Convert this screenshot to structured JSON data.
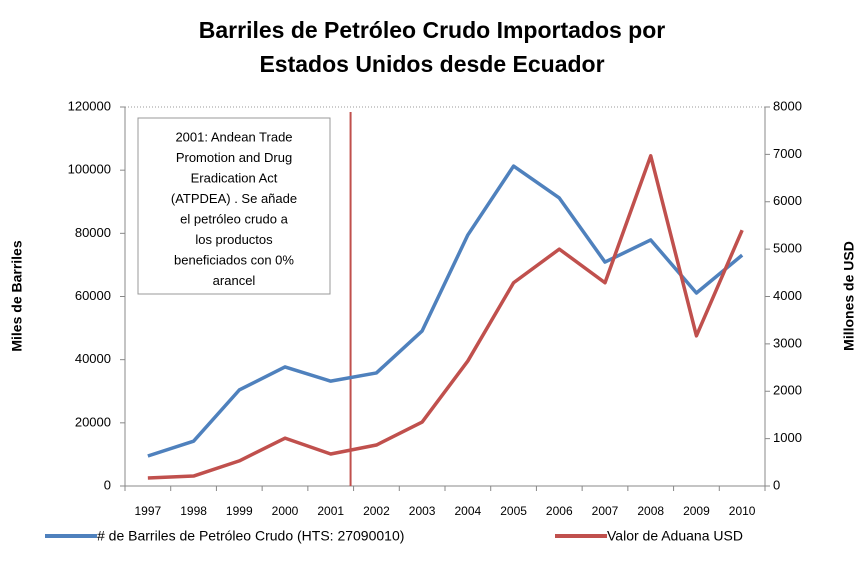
{
  "chart_data": {
    "type": "line",
    "title": [
      "Barriles de Petróleo Crudo Importados por",
      "Estados Unidos desde Ecuador"
    ],
    "ylabel": "Miles de Barriles",
    "y2label": "Millones de USD",
    "categories": [
      "1997",
      "1998",
      "1999",
      "2000",
      "2001",
      "2002",
      "2003",
      "2004",
      "2005",
      "2006",
      "2007",
      "2008",
      "2009",
      "2010"
    ],
    "series": [
      {
        "name": "# de Barriles de Petróleo Crudo (HTS: 27090010)",
        "color": "#4f81bd",
        "axis": "y",
        "values": [
          9500,
          14200,
          30400,
          37700,
          33200,
          35800,
          49100,
          79500,
          101300,
          91200,
          70900,
          77900,
          61100,
          73100
        ]
      },
      {
        "name": "Valor de Aduana USD",
        "color": "#c0504d",
        "axis": "y2",
        "values": [
          170,
          210,
          530,
          1010,
          675,
          865,
          1350,
          2640,
          4290,
          5000,
          4290,
          6970,
          3170,
          5400
        ]
      }
    ],
    "ylim": [
      0,
      120000
    ],
    "yticks": [
      0,
      20000,
      40000,
      60000,
      80000,
      100000,
      120000
    ],
    "y2lim": [
      0,
      8000
    ],
    "y2ticks": [
      0,
      1000,
      2000,
      3000,
      4000,
      5000,
      6000,
      7000,
      8000
    ],
    "annotation": [
      "2001: Andean Trade",
      "Promotion and Drug",
      "Eradication Act",
      "(ATPDEA) . Se añade",
      "el petróleo crudo  a",
      "los productos",
      "beneficiados con 0%",
      "arancel"
    ],
    "legend": "bottom"
  }
}
